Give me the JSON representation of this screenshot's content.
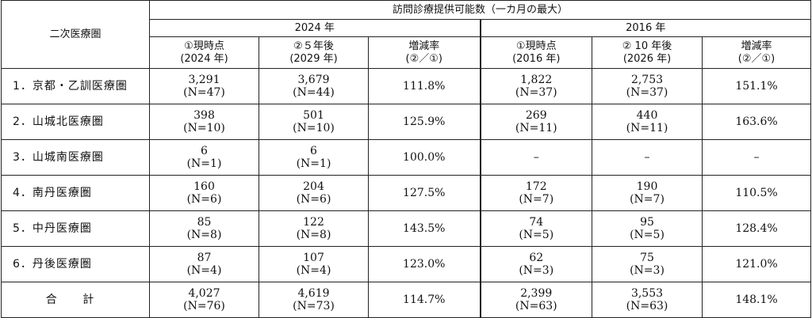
{
  "header": {
    "region_col": "二次医療圏",
    "main_title": "訪問診療提供可能数（一カ月の最大）",
    "year_a": "2024 年",
    "year_b": "2016 年",
    "cols_a": [
      {
        "l1": "①現時点",
        "l2": "(2024 年)"
      },
      {
        "l1": "②５年後",
        "l2": "(2029 年)"
      },
      {
        "l1": "増減率",
        "l2": "(②／①)"
      }
    ],
    "cols_b": [
      {
        "l1": "①現時点",
        "l2": "(2016 年)"
      },
      {
        "l1": "② 10 年後",
        "l2": "(2026 年)"
      },
      {
        "l1": "増減率",
        "l2": "(②／①)"
      }
    ]
  },
  "rows": [
    {
      "region": "1．京都・乙訓医療圏",
      "a_now": "3,291",
      "a_now_n": "(N=47)",
      "a_fut": "3,679",
      "a_fut_n": "(N=44)",
      "a_rate": "111.8%",
      "b_now": "1,822",
      "b_now_n": "(N=37)",
      "b_fut": "2,753",
      "b_fut_n": "(N=37)",
      "b_rate": "151.1%"
    },
    {
      "region": "2．山城北医療圏",
      "a_now": "398",
      "a_now_n": "(N=10)",
      "a_fut": "501",
      "a_fut_n": "(N=10)",
      "a_rate": "125.9%",
      "b_now": "269",
      "b_now_n": "(N=11)",
      "b_fut": "440",
      "b_fut_n": "(N=11)",
      "b_rate": "163.6%"
    },
    {
      "region": "3．山城南医療圏",
      "a_now": "6",
      "a_now_n": "(N=1)",
      "a_fut": "6",
      "a_fut_n": "(N=1)",
      "a_rate": "100.0%",
      "b_now": "–",
      "b_now_n": "",
      "b_fut": "–",
      "b_fut_n": "",
      "b_rate": "–"
    },
    {
      "region": "4．南丹医療圏",
      "a_now": "160",
      "a_now_n": "(N=6)",
      "a_fut": "204",
      "a_fut_n": "(N=6)",
      "a_rate": "127.5%",
      "b_now": "172",
      "b_now_n": "(N=7)",
      "b_fut": "190",
      "b_fut_n": "(N=7)",
      "b_rate": "110.5%"
    },
    {
      "region": "5．中丹医療圏",
      "a_now": "85",
      "a_now_n": "(N=8)",
      "a_fut": "122",
      "a_fut_n": "(N=8)",
      "a_rate": "143.5%",
      "b_now": "74",
      "b_now_n": "(N=5)",
      "b_fut": "95",
      "b_fut_n": "(N=5)",
      "b_rate": "128.4%"
    },
    {
      "region": "6．丹後医療圏",
      "a_now": "87",
      "a_now_n": "(N=4)",
      "a_fut": "107",
      "a_fut_n": "(N=4)",
      "a_rate": "123.0%",
      "b_now": "62",
      "b_now_n": "(N=3)",
      "b_fut": "75",
      "b_fut_n": "(N=3)",
      "b_rate": "121.0%"
    }
  ],
  "total": {
    "label": "合 計",
    "a_now": "4,027",
    "a_now_n": "(N=76)",
    "a_fut": "4,619",
    "a_fut_n": "(N=73)",
    "a_rate": "114.7%",
    "b_now": "2,399",
    "b_now_n": "(N=63)",
    "b_fut": "3,553",
    "b_fut_n": "(N=63)",
    "b_rate": "148.1%"
  }
}
